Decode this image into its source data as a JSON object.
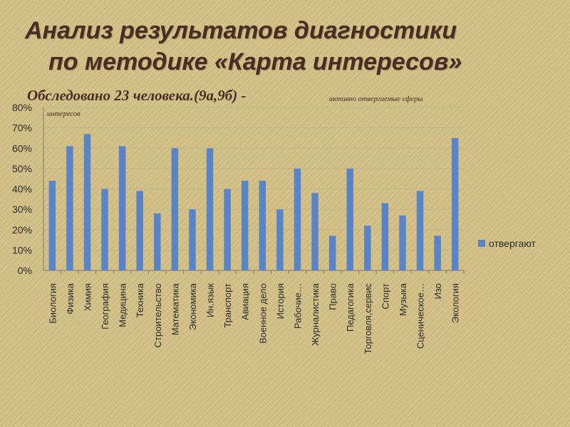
{
  "slide": {
    "title_line1": "Анализ результатов диагностики",
    "title_line2": "по методике «Карта интересов»",
    "subtitle": "Обследовано 23 человека.(9а,9б) -",
    "note_part1": "активно отвергаемые сферы",
    "note_part2": "интересов"
  },
  "chart_data": {
    "type": "bar",
    "categories": [
      "Биология",
      "Физика",
      "Химия",
      "География",
      "Медицина",
      "Техника",
      "Строительство",
      "Математика",
      "Экономика",
      "Ин.язык",
      "Транспорт",
      "Авиация",
      "Военное дело",
      "История",
      "Рабочие…",
      "Журналистика",
      "Право",
      "Педагогика",
      "Торговля,сервис",
      "Спорт",
      "Музыка",
      "Сценическое…",
      "Изо",
      "Экология"
    ],
    "series": [
      {
        "name": "отвергают",
        "values": [
          44,
          61,
          67,
          40,
          61,
          39,
          28,
          60,
          30,
          60,
          40,
          44,
          44,
          30,
          50,
          38,
          17,
          50,
          22,
          33,
          27,
          39,
          17,
          65
        ]
      }
    ],
    "ylim": [
      0,
      80
    ],
    "yticks": [
      "0%",
      "10%",
      "20%",
      "30%",
      "40%",
      "50%",
      "60%",
      "70%",
      "80%"
    ],
    "grid": true,
    "legend": "right",
    "colors": {
      "bar": "#5b84c6",
      "grid": "#bfb48a",
      "axis": "#7a7a7a"
    }
  }
}
